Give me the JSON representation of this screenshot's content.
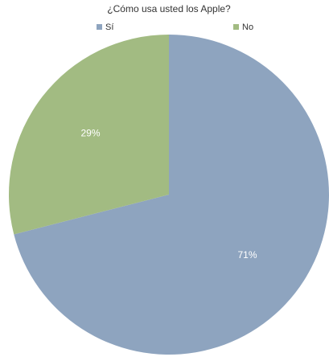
{
  "chart_data": {
    "type": "pie",
    "title": "¿Cómo usa usted los Apple?",
    "categories": [
      "Sí",
      "No"
    ],
    "values": [
      71,
      29
    ],
    "value_labels": [
      "71%",
      "29%"
    ],
    "colors": [
      "#8ea4bf",
      "#a2bb82"
    ],
    "legend": "top"
  }
}
